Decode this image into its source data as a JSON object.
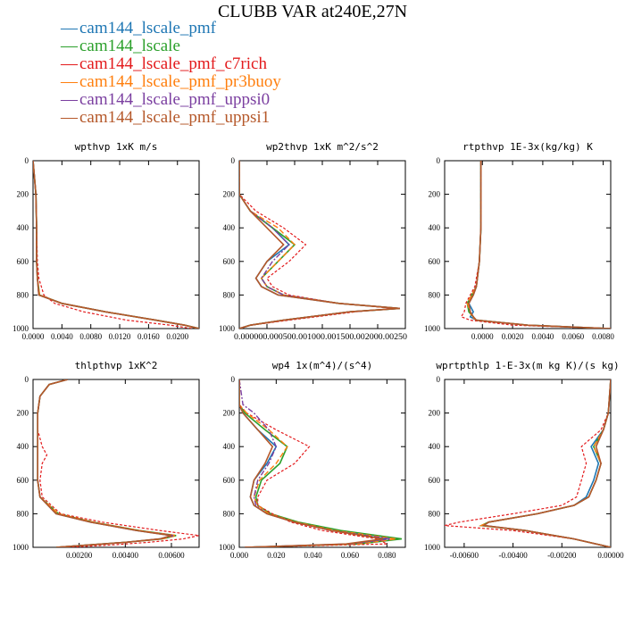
{
  "title": "CLUBB VAR at240E,27N",
  "legend": [
    {
      "label": "cam144_lscale_pmf",
      "color": "#1f77b4"
    },
    {
      "label": "cam144_lscale",
      "color": "#2ca02c"
    },
    {
      "label": "cam144_lscale_pmf_c7rich",
      "color": "#e31a1c"
    },
    {
      "label": "cam144_lscale_pmf_pr3buoy",
      "color": "#ff7f0e"
    },
    {
      "label": "cam144_lscale_pmf_uppsi0",
      "color": "#7b3fa0"
    },
    {
      "label": "cam144_lscale_pmf_uppsi1",
      "color": "#b5582a"
    }
  ],
  "chart_data": [
    {
      "type": "line",
      "title": "wpthvp  1xK m/s",
      "xlim": [
        0,
        0.023
      ],
      "ylim": [
        0,
        1000
      ],
      "y_inverted": true,
      "xticks": [
        "0.0000",
        "0.0040",
        "0.0080",
        "0.0120",
        "0.0160",
        "0.0200"
      ],
      "yticks": [
        "0",
        "200",
        "400",
        "600",
        "800",
        "1000"
      ],
      "y": [
        0,
        200,
        400,
        600,
        700,
        800,
        850,
        900,
        950,
        980,
        1000
      ],
      "series": [
        {
          "name": "cam144_lscale_pmf",
          "values": [
            0,
            0.0004,
            0.0005,
            0.0005,
            0.0006,
            0.0008,
            0.004,
            0.01,
            0.017,
            0.021,
            0.023
          ]
        },
        {
          "name": "cam144_lscale",
          "values": [
            0,
            0.0004,
            0.0005,
            0.0005,
            0.0006,
            0.0009,
            0.004,
            0.01,
            0.017,
            0.021,
            0.023
          ]
        },
        {
          "name": "cam144_lscale_pmf_c7rich",
          "values": [
            0,
            0.0004,
            0.0005,
            0.0006,
            0.0008,
            0.0015,
            0.003,
            0.007,
            0.013,
            0.019,
            0.022
          ]
        },
        {
          "name": "cam144_lscale_pmf_pr3buoy",
          "values": [
            0,
            0.0004,
            0.0005,
            0.0005,
            0.0006,
            0.0009,
            0.004,
            0.01,
            0.017,
            0.021,
            0.023
          ]
        },
        {
          "name": "cam144_lscale_pmf_uppsi0",
          "values": [
            0,
            0.0004,
            0.0005,
            0.0005,
            0.0006,
            0.0008,
            0.004,
            0.01,
            0.017,
            0.021,
            0.023
          ]
        },
        {
          "name": "cam144_lscale_pmf_uppsi1",
          "values": [
            0,
            0.0004,
            0.0005,
            0.0005,
            0.0006,
            0.0008,
            0.004,
            0.01,
            0.017,
            0.021,
            0.023
          ]
        }
      ]
    },
    {
      "type": "line",
      "title": "wp2thvp  1xK m^2/s^2",
      "xlim": [
        0,
        0.003
      ],
      "ylim": [
        0,
        1000
      ],
      "y_inverted": true,
      "xticks": [
        "0.0000",
        "0.0005",
        "0.0010",
        "0.0015",
        "0.0020",
        "0.0025"
      ],
      "xticks_text": "0.000000.000500.001000.001500.002000.00250",
      "yticks": [
        "0",
        "200",
        "400",
        "600",
        "800",
        "1000"
      ],
      "y": [
        0,
        200,
        300,
        400,
        500,
        600,
        700,
        750,
        800,
        850,
        880,
        900,
        950,
        980,
        1000
      ],
      "series": [
        {
          "name": "cam144_lscale_pmf",
          "values": [
            0,
            0,
            0.0002,
            0.0006,
            0.0009,
            0.0005,
            0.0003,
            0.0004,
            0.0007,
            0.0018,
            0.0029,
            0.002,
            0.0008,
            0.0002,
            0
          ]
        },
        {
          "name": "cam144_lscale",
          "values": [
            0,
            0,
            0.0002,
            0.0006,
            0.001,
            0.0007,
            0.0004,
            0.0005,
            0.0008,
            0.0018,
            0.0029,
            0.002,
            0.0008,
            0.0002,
            0
          ]
        },
        {
          "name": "cam144_lscale_pmf_c7rich",
          "values": [
            0,
            0,
            0.0003,
            0.0008,
            0.0012,
            0.0009,
            0.0005,
            0.0006,
            0.0009,
            0.0018,
            0.0028,
            0.0021,
            0.0009,
            0.0002,
            0
          ]
        },
        {
          "name": "cam144_lscale_pmf_pr3buoy",
          "values": [
            0,
            0,
            0.0002,
            0.0007,
            0.001,
            0.0007,
            0.0004,
            0.0005,
            0.0008,
            0.0018,
            0.0029,
            0.002,
            0.0008,
            0.0002,
            0
          ]
        },
        {
          "name": "cam144_lscale_pmf_uppsi0",
          "values": [
            0,
            0,
            0.0002,
            0.0006,
            0.0009,
            0.0006,
            0.0004,
            0.0005,
            0.0008,
            0.0018,
            0.0029,
            0.002,
            0.0008,
            0.0002,
            0
          ]
        },
        {
          "name": "cam144_lscale_pmf_uppsi1",
          "values": [
            0,
            0,
            0.0002,
            0.0005,
            0.0008,
            0.0005,
            0.0003,
            0.0004,
            0.0007,
            0.0018,
            0.0029,
            0.002,
            0.0008,
            0.0002,
            0
          ]
        }
      ]
    },
    {
      "type": "line",
      "title": "rtpthvp  1E-3x(kg/kg) K",
      "xlim": [
        -0.0025,
        0.0085
      ],
      "ylim": [
        0,
        1000
      ],
      "y_inverted": true,
      "xticks": [
        "0.0000",
        "0.0020",
        "0.0040",
        "0.0060",
        "0.0080"
      ],
      "yticks": [
        "0",
        "200",
        "400",
        "600",
        "800",
        "1000"
      ],
      "y": [
        0,
        200,
        400,
        600,
        750,
        800,
        850,
        900,
        930,
        950,
        980,
        1000
      ],
      "series": [
        {
          "name": "cam144_lscale_pmf",
          "values": [
            -0.0001,
            -0.0001,
            -0.0001,
            -0.0002,
            -0.0004,
            -0.0006,
            -0.0009,
            -0.0006,
            -0.0008,
            -0.0004,
            0.003,
            0.0085
          ]
        },
        {
          "name": "cam144_lscale",
          "values": [
            -0.0001,
            -0.0001,
            -0.0001,
            -0.0002,
            -0.0004,
            -0.0007,
            -0.001,
            -0.0009,
            -0.0006,
            -0.0004,
            0.003,
            0.0085
          ]
        },
        {
          "name": "cam144_lscale_pmf_c7rich",
          "values": [
            -0.0001,
            -0.0001,
            -0.0001,
            -0.0002,
            -0.0005,
            -0.0008,
            -0.0011,
            -0.0012,
            -0.0014,
            -0.0008,
            0.002,
            0.0085
          ]
        },
        {
          "name": "cam144_lscale_pmf_pr3buoy",
          "values": [
            -0.0001,
            -0.0001,
            -0.0001,
            -0.0002,
            -0.0004,
            -0.0007,
            -0.001,
            -0.0008,
            -0.0007,
            -0.0004,
            0.003,
            0.0085
          ]
        },
        {
          "name": "cam144_lscale_pmf_uppsi0",
          "values": [
            -0.0001,
            -0.0001,
            -0.0001,
            -0.0002,
            -0.0004,
            -0.0006,
            -0.0009,
            -0.0008,
            -0.0006,
            -0.0004,
            0.003,
            0.0085
          ]
        },
        {
          "name": "cam144_lscale_pmf_uppsi1",
          "values": [
            -0.0001,
            -0.0001,
            -0.0001,
            -0.0002,
            -0.0004,
            -0.0006,
            -0.0009,
            -0.0008,
            -0.0006,
            -0.0004,
            0.003,
            0.0085
          ]
        }
      ]
    },
    {
      "type": "line",
      "title": "thlpthvp  1xK^2",
      "xlim": [
        0,
        0.0072
      ],
      "ylim": [
        0,
        1000
      ],
      "y_inverted": true,
      "xticks": [
        "0.00200",
        "0.00400",
        "0.00600"
      ],
      "yticks": [
        "0",
        "200",
        "400",
        "600",
        "800",
        "1000"
      ],
      "y": [
        0,
        30,
        100,
        200,
        300,
        400,
        450,
        500,
        600,
        700,
        800,
        850,
        900,
        930,
        950,
        970,
        985,
        1000
      ],
      "series": [
        {
          "name": "cam144_lscale_pmf",
          "values": [
            0.0015,
            0.0007,
            0.0003,
            0.0002,
            0.0002,
            0.0002,
            0.0002,
            0.0002,
            0.0002,
            0.0003,
            0.001,
            0.0025,
            0.0045,
            0.006,
            0.0055,
            0.004,
            0.0025,
            0.001
          ]
        },
        {
          "name": "cam144_lscale",
          "values": [
            0.0015,
            0.0007,
            0.0003,
            0.0002,
            0.0002,
            0.0002,
            0.0002,
            0.0002,
            0.0002,
            0.0003,
            0.0011,
            0.0026,
            0.0046,
            0.0062,
            0.0056,
            0.004,
            0.0025,
            0.001
          ]
        },
        {
          "name": "cam144_lscale_pmf_c7rich",
          "values": [
            0.0015,
            0.0007,
            0.0003,
            0.0002,
            0.0002,
            0.0004,
            0.0006,
            0.0004,
            0.0003,
            0.0004,
            0.0012,
            0.003,
            0.0055,
            0.0072,
            0.0065,
            0.005,
            0.0035,
            0.0015
          ]
        },
        {
          "name": "cam144_lscale_pmf_pr3buoy",
          "values": [
            0.0015,
            0.0007,
            0.0003,
            0.0002,
            0.0002,
            0.0002,
            0.0002,
            0.0002,
            0.0002,
            0.0003,
            0.0011,
            0.0026,
            0.0046,
            0.0062,
            0.0056,
            0.004,
            0.0025,
            0.001
          ]
        },
        {
          "name": "cam144_lscale_pmf_uppsi0",
          "values": [
            0.0015,
            0.0007,
            0.0003,
            0.0002,
            0.0002,
            0.0002,
            0.0002,
            0.0002,
            0.0002,
            0.0003,
            0.001,
            0.0025,
            0.0045,
            0.0061,
            0.0055,
            0.004,
            0.0025,
            0.001
          ]
        },
        {
          "name": "cam144_lscale_pmf_uppsi1",
          "values": [
            0.0015,
            0.0007,
            0.0003,
            0.0002,
            0.0002,
            0.0002,
            0.0002,
            0.0002,
            0.0002,
            0.0003,
            0.001,
            0.0025,
            0.0045,
            0.006,
            0.0055,
            0.004,
            0.0025,
            0.001
          ]
        }
      ]
    },
    {
      "type": "line",
      "title": "wp4  1x(m^4)/(s^4)",
      "xlim": [
        0,
        0.09
      ],
      "ylim": [
        0,
        1000
      ],
      "y_inverted": true,
      "xticks": [
        "0.000",
        "0.020",
        "0.040",
        "0.060",
        "0.080"
      ],
      "yticks": [
        "0",
        "200",
        "400",
        "600",
        "800",
        "1000"
      ],
      "y": [
        0,
        150,
        200,
        300,
        400,
        500,
        600,
        700,
        750,
        800,
        850,
        900,
        950,
        980,
        1000
      ],
      "series": [
        {
          "name": "cam144_lscale_pmf",
          "values": [
            0,
            0,
            0.002,
            0.01,
            0.02,
            0.015,
            0.008,
            0.006,
            0.008,
            0.015,
            0.03,
            0.05,
            0.08,
            0.06,
            0.003
          ]
        },
        {
          "name": "cam144_lscale",
          "values": [
            0,
            0,
            0.003,
            0.014,
            0.026,
            0.022,
            0.012,
            0.009,
            0.01,
            0.017,
            0.032,
            0.055,
            0.088,
            0.065,
            0.003
          ]
        },
        {
          "name": "cam144_lscale_pmf_c7rich",
          "values": [
            0,
            0,
            0.004,
            0.02,
            0.038,
            0.03,
            0.015,
            0.01,
            0.01,
            0.018,
            0.028,
            0.045,
            0.075,
            0.08,
            0.003
          ]
        },
        {
          "name": "cam144_lscale_pmf_pr3buoy",
          "values": [
            0,
            0,
            0.004,
            0.016,
            0.026,
            0.02,
            0.011,
            0.008,
            0.01,
            0.016,
            0.031,
            0.052,
            0.085,
            0.065,
            0.003
          ]
        },
        {
          "name": "cam144_lscale_pmf_uppsi0",
          "values": [
            0,
            0.002,
            0.008,
            0.016,
            0.02,
            0.016,
            0.01,
            0.008,
            0.009,
            0.015,
            0.03,
            0.05,
            0.082,
            0.06,
            0.003
          ]
        },
        {
          "name": "cam144_lscale_pmf_uppsi1",
          "values": [
            0,
            0,
            0.002,
            0.01,
            0.018,
            0.014,
            0.008,
            0.006,
            0.008,
            0.015,
            0.03,
            0.05,
            0.078,
            0.058,
            0.003
          ]
        }
      ]
    },
    {
      "type": "line",
      "title": "wprtpthlp  1-E-3x(m kg K)/(s kg)",
      "xlim": [
        -0.0068,
        0
      ],
      "ylim": [
        0,
        1000
      ],
      "y_inverted": true,
      "xticks": [
        "-0.00600",
        "-0.00400",
        "-0.00200",
        "0.00000"
      ],
      "yticks": [
        "0",
        "200",
        "400",
        "600",
        "800",
        "1000"
      ],
      "y": [
        0,
        200,
        300,
        400,
        500,
        600,
        700,
        750,
        800,
        850,
        870,
        900,
        950,
        1000
      ],
      "series": [
        {
          "name": "cam144_lscale_pmf",
          "values": [
            0,
            -0.0001,
            -0.0003,
            -0.0008,
            -0.0005,
            -0.0007,
            -0.001,
            -0.0015,
            -0.003,
            -0.005,
            -0.0052,
            -0.0035,
            -0.0015,
            0
          ]
        },
        {
          "name": "cam144_lscale",
          "values": [
            0,
            -0.0001,
            -0.0003,
            -0.0007,
            -0.0004,
            -0.0006,
            -0.0009,
            -0.0015,
            -0.003,
            -0.005,
            -0.0053,
            -0.0035,
            -0.0015,
            0
          ]
        },
        {
          "name": "cam144_lscale_pmf_c7rich",
          "values": [
            0,
            -0.0001,
            -0.0004,
            -0.0012,
            -0.001,
            -0.0012,
            -0.0014,
            -0.002,
            -0.004,
            -0.0062,
            -0.0068,
            -0.004,
            -0.0015,
            0
          ]
        },
        {
          "name": "cam144_lscale_pmf_pr3buoy",
          "values": [
            0,
            -0.0001,
            -0.0003,
            -0.0007,
            -0.0004,
            -0.0006,
            -0.0009,
            -0.0015,
            -0.003,
            -0.005,
            -0.0053,
            -0.0035,
            -0.0015,
            0
          ]
        },
        {
          "name": "cam144_lscale_pmf_uppsi0",
          "values": [
            0,
            -0.0001,
            -0.0003,
            -0.0006,
            -0.0004,
            -0.0006,
            -0.0009,
            -0.0015,
            -0.003,
            -0.005,
            -0.0052,
            -0.0035,
            -0.0015,
            0
          ]
        },
        {
          "name": "cam144_lscale_pmf_uppsi1",
          "values": [
            0,
            -0.0001,
            -0.0003,
            -0.0006,
            -0.0004,
            -0.0006,
            -0.0009,
            -0.0015,
            -0.003,
            -0.005,
            -0.0052,
            -0.0035,
            -0.0015,
            0
          ]
        }
      ]
    }
  ]
}
